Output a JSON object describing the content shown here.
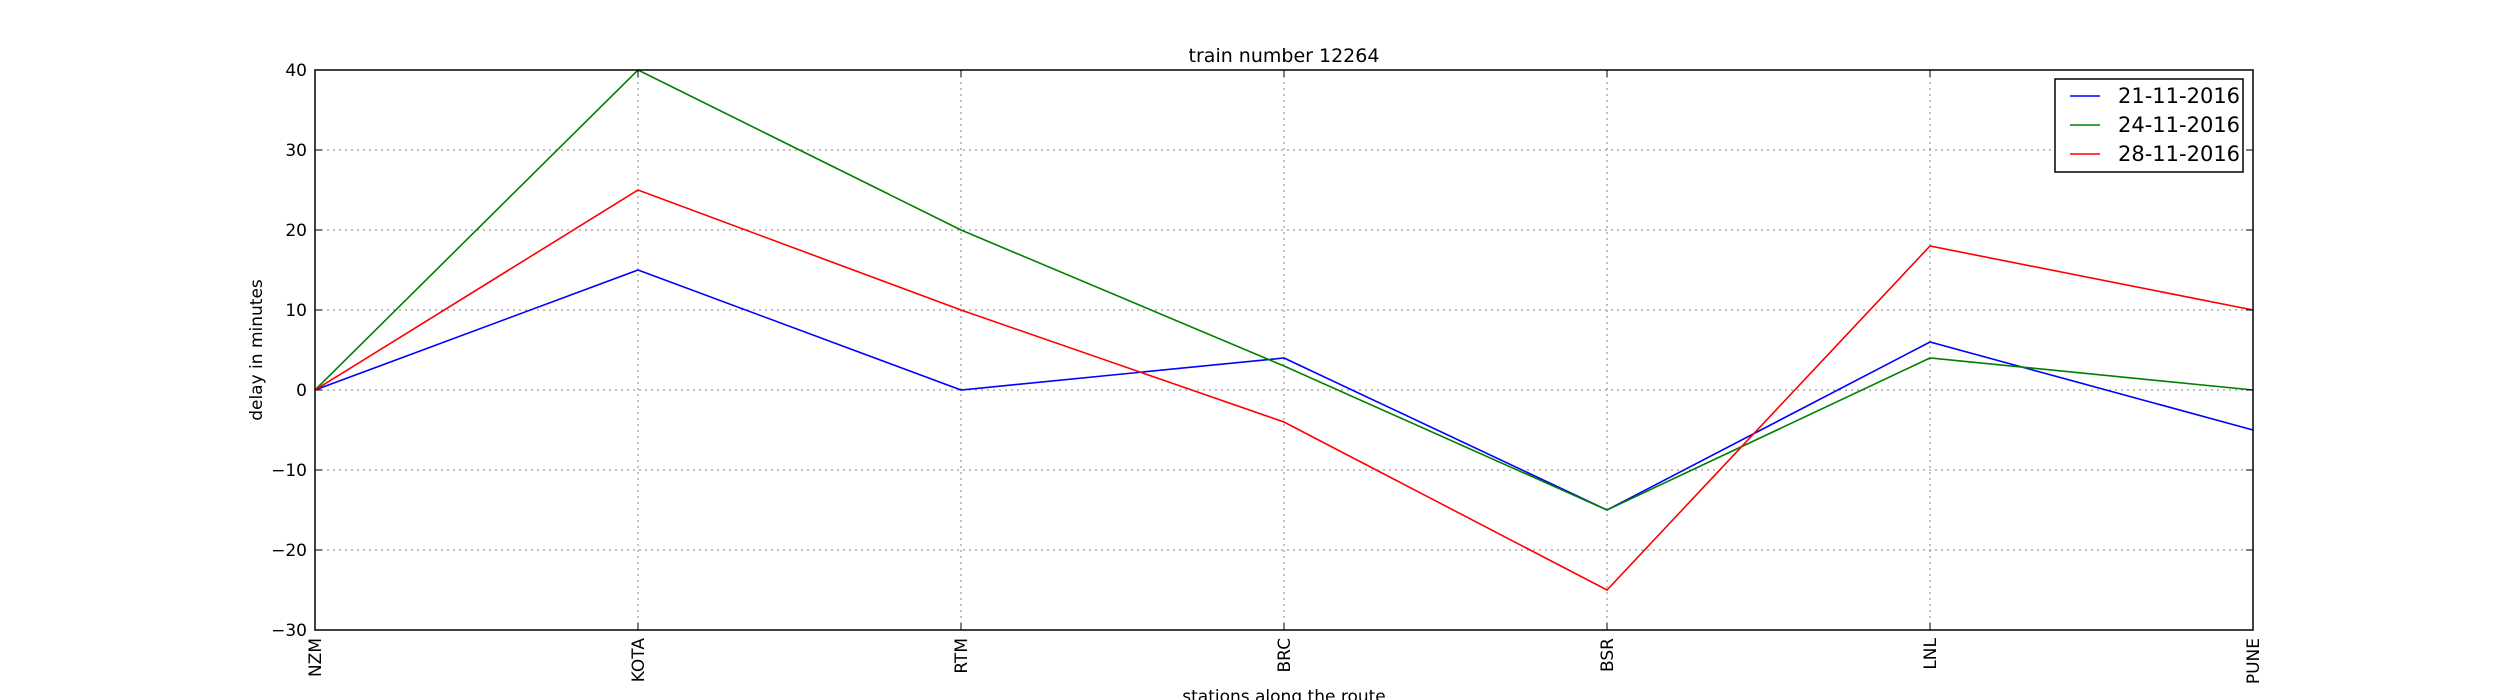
{
  "chart_data": {
    "type": "line",
    "title": "train number 12264",
    "xlabel": "stations along the route",
    "ylabel": "delay in minutes",
    "categories": [
      "NZM",
      "KOTA",
      "RTM",
      "BRC",
      "BSR",
      "LNL",
      "PUNE"
    ],
    "ylim": [
      -30,
      40
    ],
    "yticks": [
      -30,
      -20,
      -10,
      0,
      10,
      20,
      30,
      40
    ],
    "ytick_labels": [
      "−30",
      "−20",
      "−10",
      "0",
      "10",
      "20",
      "30",
      "40"
    ],
    "grid": true,
    "legend_position": "top-right",
    "series": [
      {
        "name": "21-11-2016",
        "color": "#0000ff",
        "values": [
          0,
          15,
          0,
          4,
          -15,
          6,
          -5
        ]
      },
      {
        "name": "24-11-2016",
        "color": "#008000",
        "values": [
          0,
          40,
          20,
          3,
          -15,
          4,
          0
        ]
      },
      {
        "name": "28-11-2016",
        "color": "#ff0000",
        "values": [
          0,
          25,
          10,
          -4,
          -25,
          18,
          10
        ]
      }
    ]
  }
}
